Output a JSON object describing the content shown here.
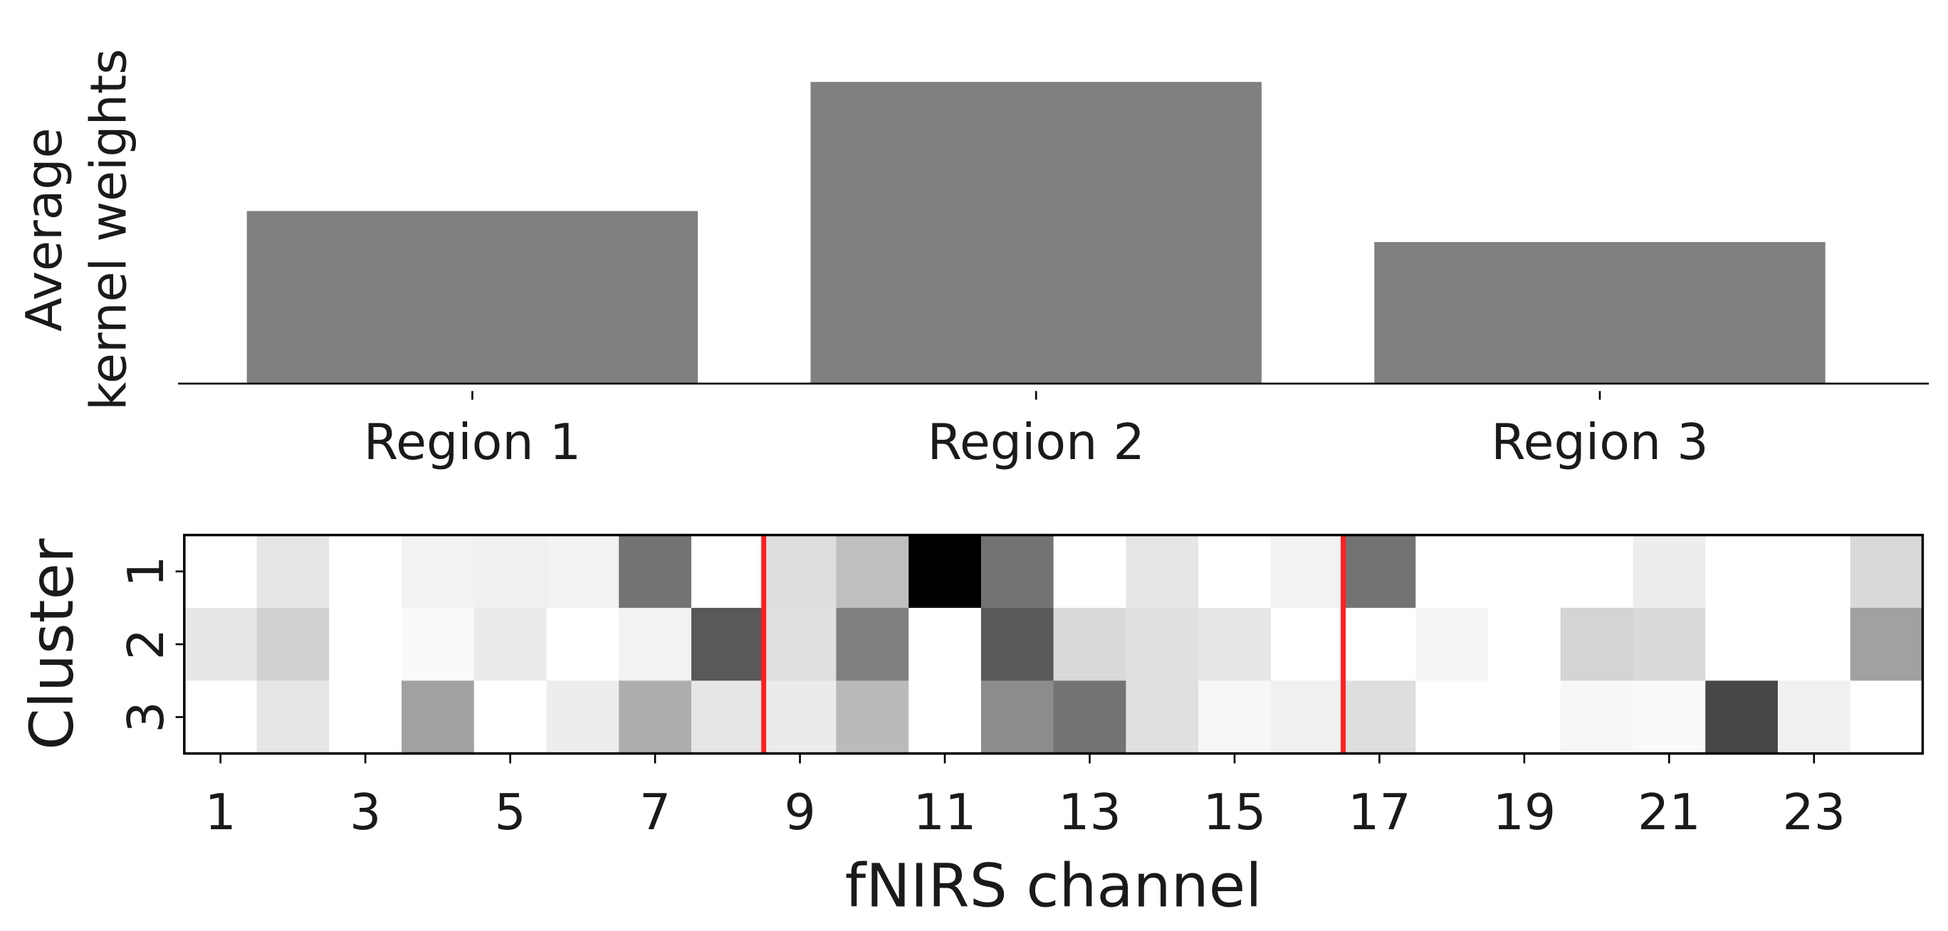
{
  "chart_data": [
    {
      "type": "bar",
      "ylabel": [
        "Average",
        "kernel weights"
      ],
      "categories": [
        "Region 1",
        "Region 2",
        "Region 3"
      ],
      "values": [
        1.39,
        2.43,
        1.14
      ],
      "color": "#808080",
      "ylim": [
        0,
        2.55
      ]
    },
    {
      "type": "heatmap",
      "ylabel": "Cluster",
      "xlabel": "fNIRS channel",
      "categories": [
        "1",
        "2",
        "3"
      ],
      "x": [
        1,
        2,
        3,
        4,
        5,
        6,
        7,
        8,
        9,
        10,
        11,
        12,
        13,
        14,
        15,
        16,
        17,
        18,
        19,
        20,
        21,
        22,
        23,
        24
      ],
      "values": [
        [
          0,
          0.1,
          0,
          0.05,
          0.06,
          0.05,
          0.55,
          0,
          0.13,
          0.25,
          1.0,
          0.55,
          0,
          0.1,
          0,
          0.05,
          0.55,
          0,
          0,
          0,
          0.07,
          0,
          0,
          0.15
        ],
        [
          0.1,
          0.18,
          0,
          0.02,
          0.08,
          0,
          0.05,
          0.65,
          0.12,
          0.5,
          0,
          0.65,
          0.15,
          0.12,
          0.1,
          0,
          0,
          0.04,
          0,
          0.17,
          0.15,
          0,
          0,
          0.37
        ],
        [
          0,
          0.1,
          0,
          0.37,
          0,
          0.07,
          0.32,
          0.1,
          0.08,
          0.27,
          0,
          0.45,
          0.55,
          0.12,
          0.03,
          0.06,
          0.13,
          0,
          0,
          0.03,
          0.02,
          0.72,
          0.06,
          0
        ]
      ],
      "colormap": "Greys",
      "xlim": [
        0.5,
        24.5
      ],
      "xticks": [
        1,
        3,
        5,
        7,
        9,
        11,
        13,
        15,
        17,
        19,
        21,
        23
      ],
      "vlines": [
        8.5,
        16.5
      ],
      "vline_color": "#ff2020"
    }
  ]
}
